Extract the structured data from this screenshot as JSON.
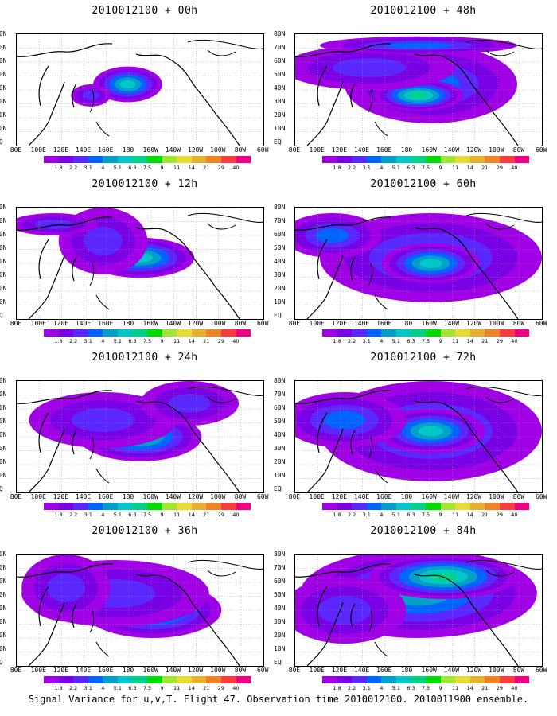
{
  "panels": [
    {
      "title": "2010012100 + 00h"
    },
    {
      "title": "2010012100 + 48h"
    },
    {
      "title": "2010012100 + 12h"
    },
    {
      "title": "2010012100 + 60h"
    },
    {
      "title": "2010012100 + 24h"
    },
    {
      "title": "2010012100 + 72h"
    },
    {
      "title": "2010012100 + 36h"
    },
    {
      "title": "2010012100 + 84h"
    }
  ],
  "lat_labels": [
    "80N",
    "70N",
    "60N",
    "50N",
    "40N",
    "30N",
    "20N",
    "10N",
    "EQ"
  ],
  "lon_labels": [
    "80E",
    "100E",
    "120E",
    "140E",
    "160E",
    "180",
    "160W",
    "140W",
    "120W",
    "100W",
    "80W",
    "60W"
  ],
  "colorbar": {
    "ticks": [
      "1.8",
      "2.2",
      "3.1",
      "4",
      "5.1",
      "6.3",
      "7.5",
      "9",
      "11",
      "14",
      "21",
      "29",
      "40"
    ],
    "colors": [
      "#a000e6",
      "#7a00e6",
      "#5a28ff",
      "#0064ff",
      "#00a0c8",
      "#00c8c8",
      "#00d28c",
      "#00dc00",
      "#a0e632",
      "#e6dc32",
      "#e6af2d",
      "#f08228",
      "#fa3c3c",
      "#f00082"
    ]
  },
  "caption": "Signal Variance for u,v,T. Flight 47. Observation time 2010012100. 2010011900 ensemble."
}
